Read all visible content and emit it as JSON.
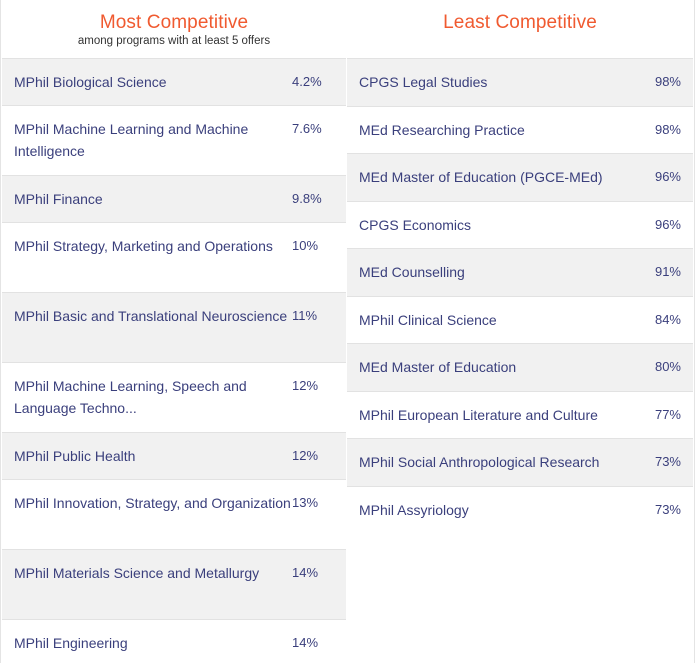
{
  "most": {
    "title": "Most Competitive",
    "subtitle": "among programs with at least 5 offers",
    "rows": [
      {
        "name": "MPhil Biological Science",
        "rate": "4.2%"
      },
      {
        "name": "MPhil Machine Learning and Machine Intelligence",
        "rate": "7.6%"
      },
      {
        "name": "MPhil Finance",
        "rate": "9.8%"
      },
      {
        "name": "MPhil Strategy, Marketing and Operations",
        "rate": "10%"
      },
      {
        "name": "MPhil Basic and Translational Neuroscience",
        "rate": "11%"
      },
      {
        "name": "MPhil Machine Learning, Speech and Language Techno...",
        "rate": "12%"
      },
      {
        "name": "MPhil Public Health",
        "rate": "12%"
      },
      {
        "name": "MPhil Innovation, Strategy, and Organization",
        "rate": "13%"
      },
      {
        "name": "MPhil Materials Science and Metallurgy",
        "rate": "14%"
      },
      {
        "name": "MPhil Engineering",
        "rate": "14%"
      }
    ]
  },
  "least": {
    "title": "Least Competitive",
    "rows": [
      {
        "name": "CPGS Legal Studies",
        "rate": "98%"
      },
      {
        "name": "MEd Researching Practice",
        "rate": "98%"
      },
      {
        "name": "MEd Master of Education (PGCE-MEd)",
        "rate": "96%"
      },
      {
        "name": "CPGS Economics",
        "rate": "96%"
      },
      {
        "name": "MEd Counselling",
        "rate": "91%"
      },
      {
        "name": "MPhil Clinical Science",
        "rate": "84%"
      },
      {
        "name": "MEd Master of Education",
        "rate": "80%"
      },
      {
        "name": "MPhil European Literature and Culture",
        "rate": "77%"
      },
      {
        "name": "MPhil Social Anthropological Research",
        "rate": "73%"
      },
      {
        "name": "MPhil Assyriology",
        "rate": "73%"
      }
    ]
  }
}
